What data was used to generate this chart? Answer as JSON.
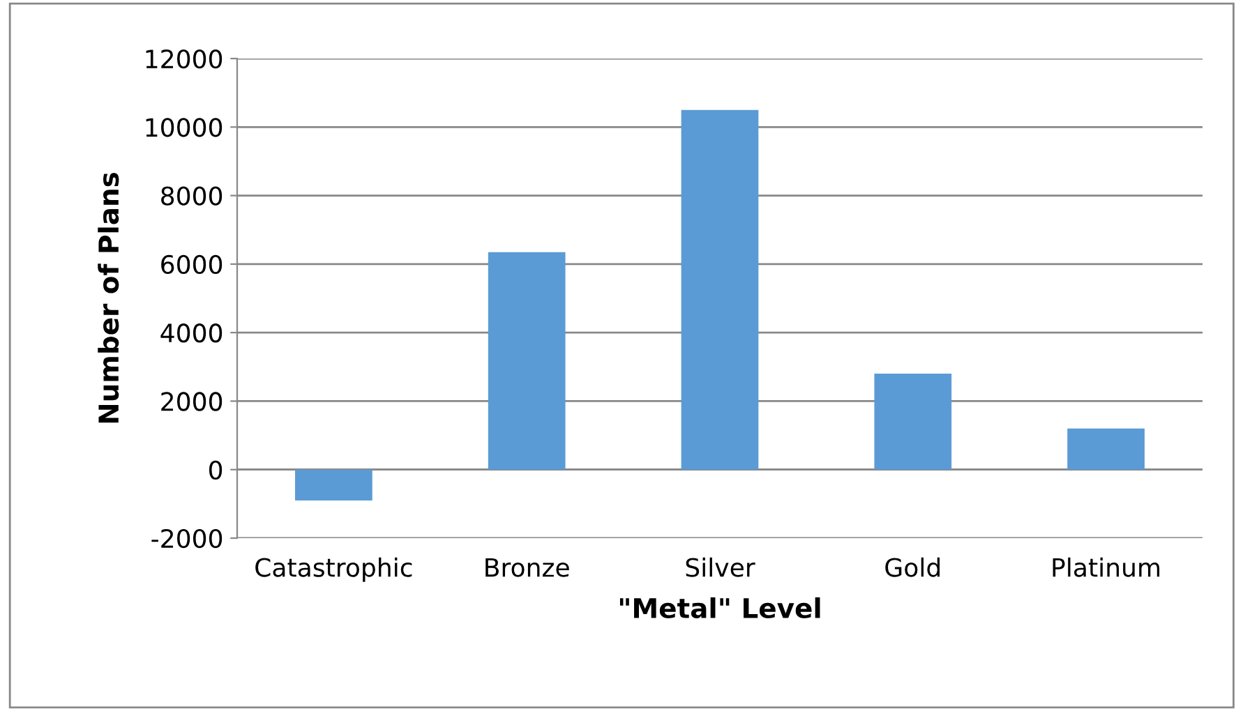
{
  "chart_data": {
    "type": "bar",
    "xlabel": "\"Metal\" Level",
    "ylabel": "Number of Plans",
    "categories": [
      "Catastrophic",
      "Bronze",
      "Silver",
      "Gold",
      "Platinum"
    ],
    "values": [
      -900,
      6350,
      10500,
      2800,
      1200
    ],
    "color": "#5b9bd5",
    "ylim": [
      -2000,
      12000
    ],
    "yticks": [
      -2000,
      0,
      2000,
      4000,
      6000,
      8000,
      10000,
      12000
    ],
    "grid": "y"
  }
}
